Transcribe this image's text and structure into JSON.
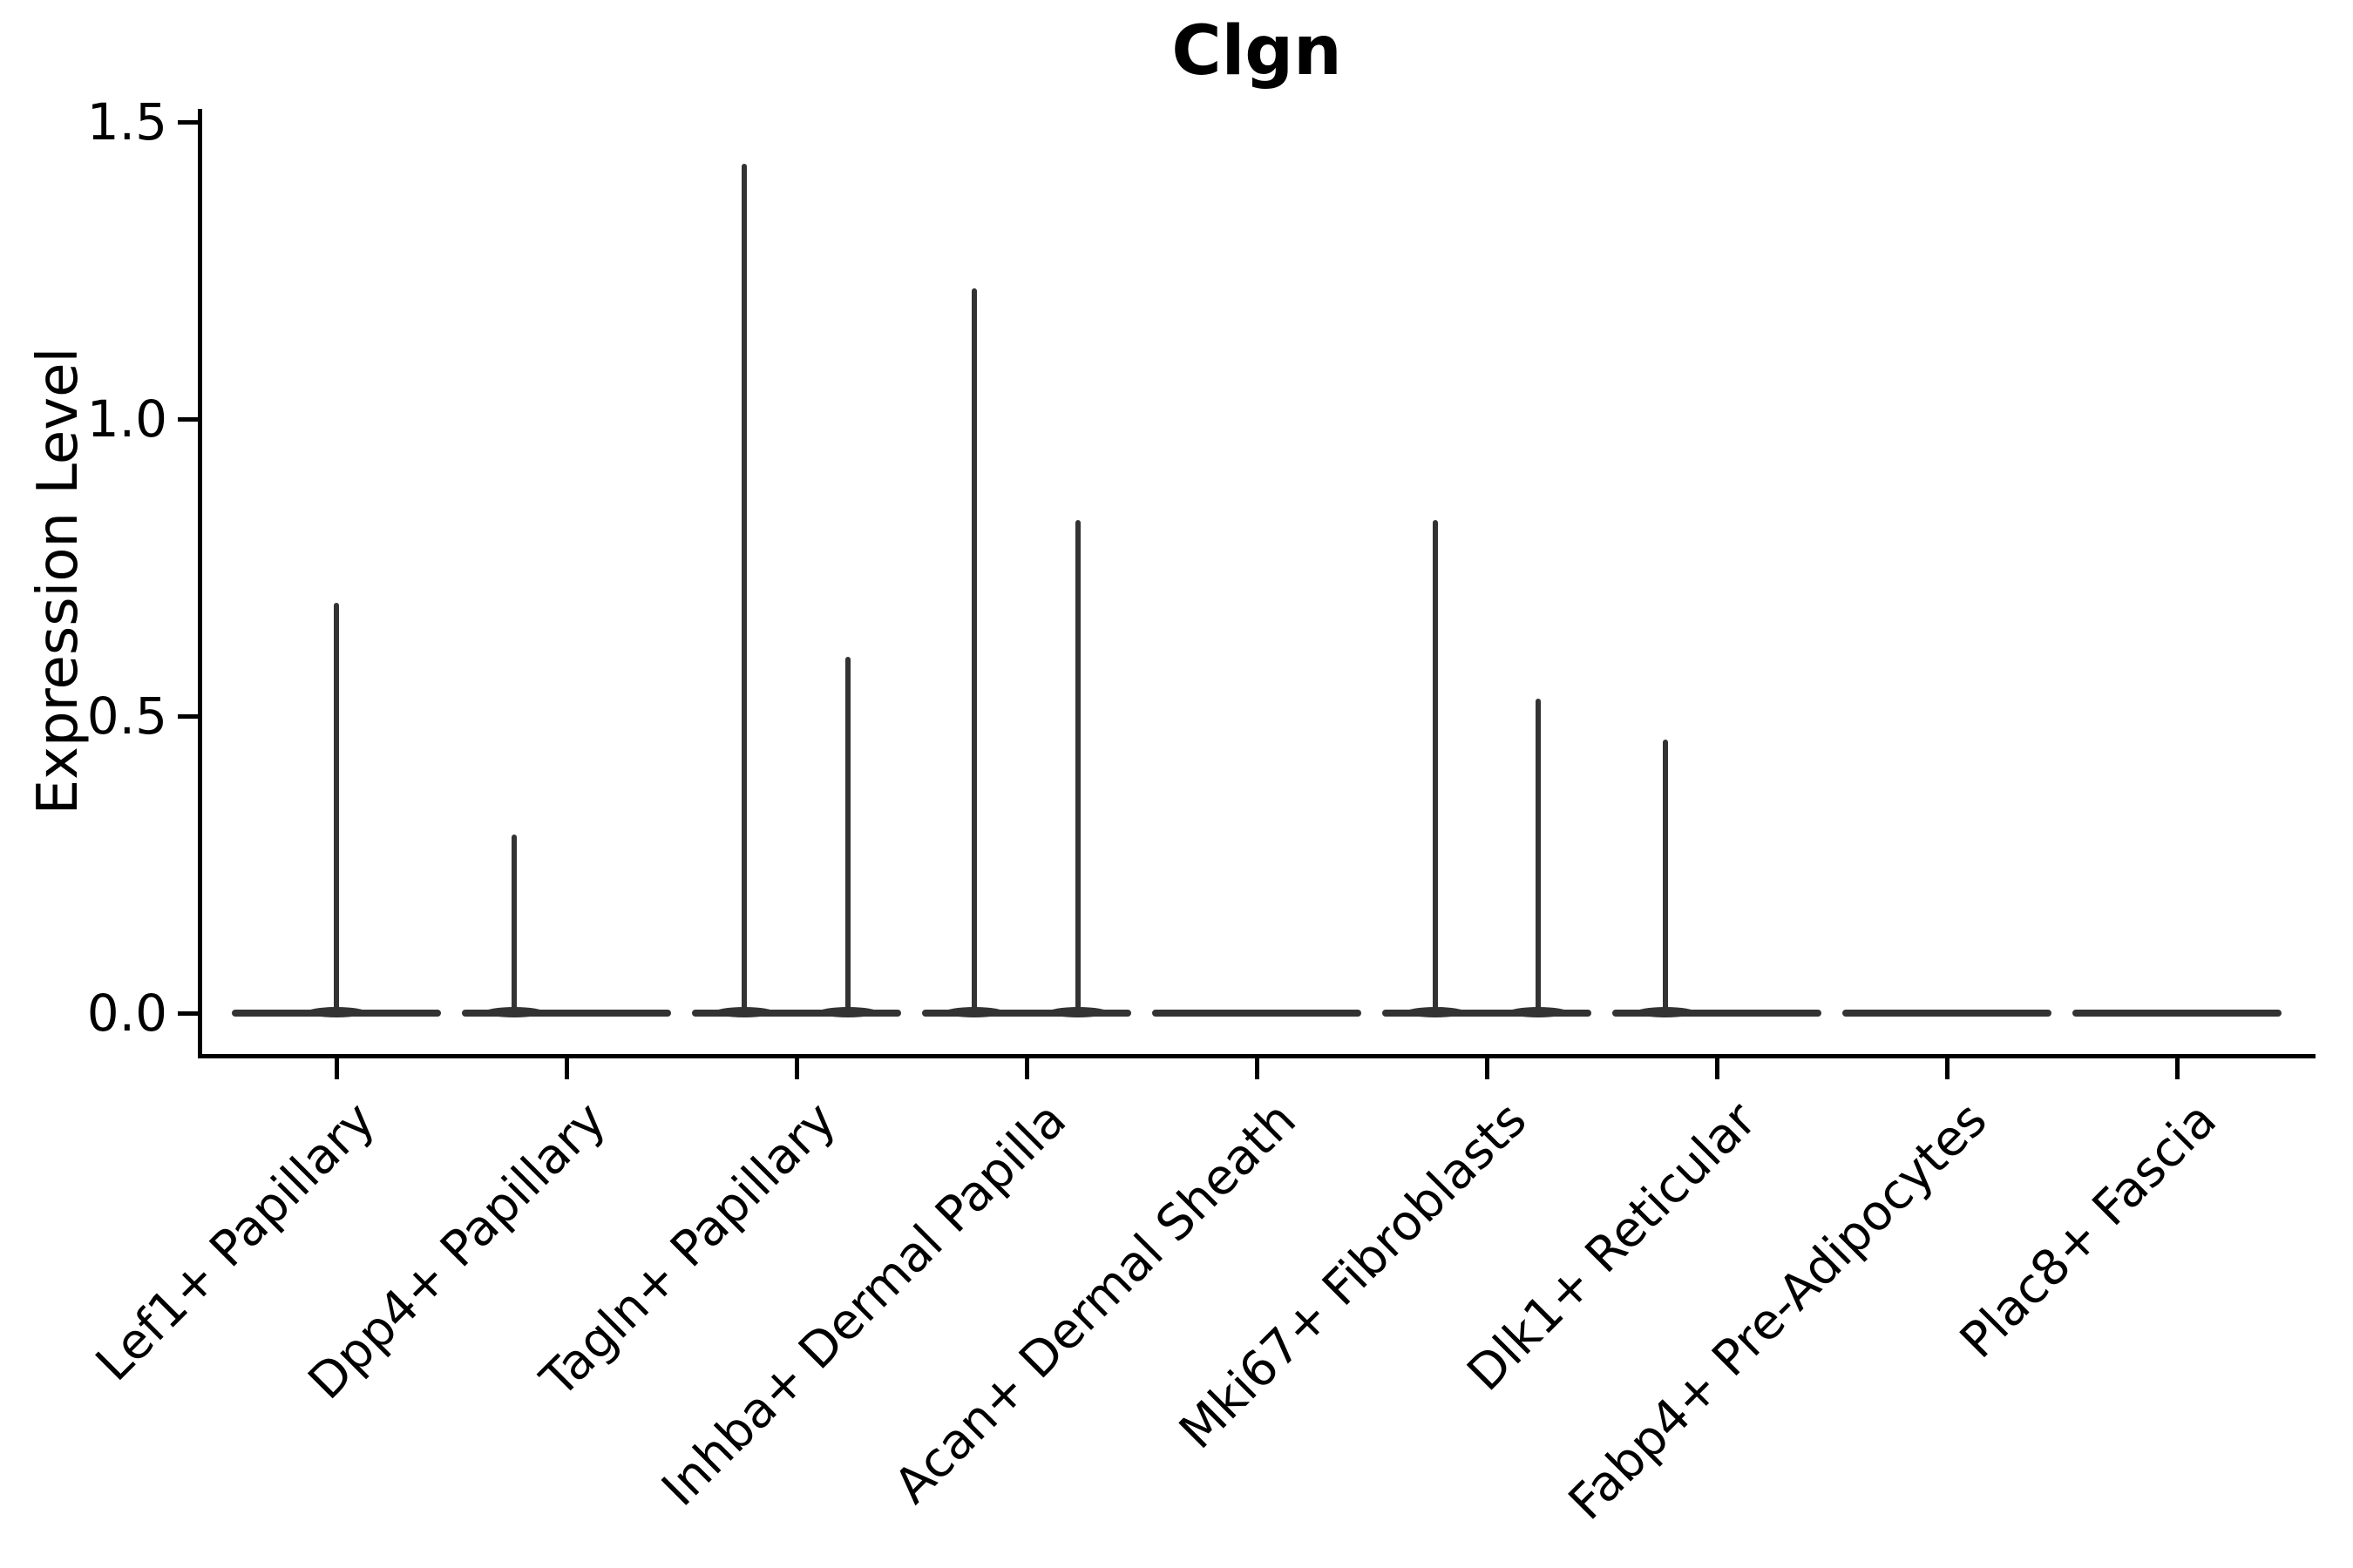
{
  "chart_data": {
    "type": "violin",
    "title": "Clgn",
    "ylabel": "Expression Level",
    "xlabel": "",
    "grid": false,
    "legend": "none",
    "ylim": [
      -0.07,
      1.52
    ],
    "yticks": [
      {
        "label": "0.0",
        "value": 0.0
      },
      {
        "label": "0.5",
        "value": 0.5
      },
      {
        "label": "1.0",
        "value": 1.0
      },
      {
        "label": "1.5",
        "value": 1.5
      }
    ],
    "categories": [
      "Lef1+ Papillary",
      "Dpp4+ Papillary",
      "Tagln+ Papillary",
      "Inhba+ Dermal Papilla",
      "Acan+ Dermal Sheath",
      "Mki67+ Fibroblasts",
      "Dlk1+ Reticular",
      "Fabp4+ Pre-Adipocytes",
      "Plac8+ Fascia"
    ],
    "violins": [
      {
        "category": "Lef1+ Papillary",
        "zero_baseline": true,
        "spikes": [
          {
            "position": "center",
            "max": 0.69
          }
        ]
      },
      {
        "category": "Dpp4+ Papillary",
        "zero_baseline": true,
        "spikes": [
          {
            "position": "left",
            "max": 0.3
          }
        ]
      },
      {
        "category": "Tagln+ Papillary",
        "zero_baseline": true,
        "spikes": [
          {
            "position": "left",
            "max": 1.43
          },
          {
            "position": "right",
            "max": 0.6
          }
        ]
      },
      {
        "category": "Inhba+ Dermal Papilla",
        "zero_baseline": true,
        "spikes": [
          {
            "position": "left",
            "max": 1.22
          },
          {
            "position": "right",
            "max": 0.83
          }
        ]
      },
      {
        "category": "Acan+ Dermal Sheath",
        "zero_baseline": true,
        "spikes": []
      },
      {
        "category": "Mki67+ Fibroblasts",
        "zero_baseline": true,
        "spikes": [
          {
            "position": "left",
            "max": 0.83
          },
          {
            "position": "right",
            "max": 0.53
          }
        ]
      },
      {
        "category": "Dlk1+ Reticular",
        "zero_baseline": true,
        "spikes": [
          {
            "position": "left",
            "max": 0.46
          }
        ]
      },
      {
        "category": "Fabp4+ Pre-Adipocytes",
        "zero_baseline": true,
        "spikes": []
      },
      {
        "category": "Plac8+ Fascia",
        "zero_baseline": true,
        "spikes": []
      }
    ],
    "colors": {
      "violin": "#333333",
      "axis": "#000000",
      "text": "#000000",
      "background": "#ffffff"
    }
  }
}
